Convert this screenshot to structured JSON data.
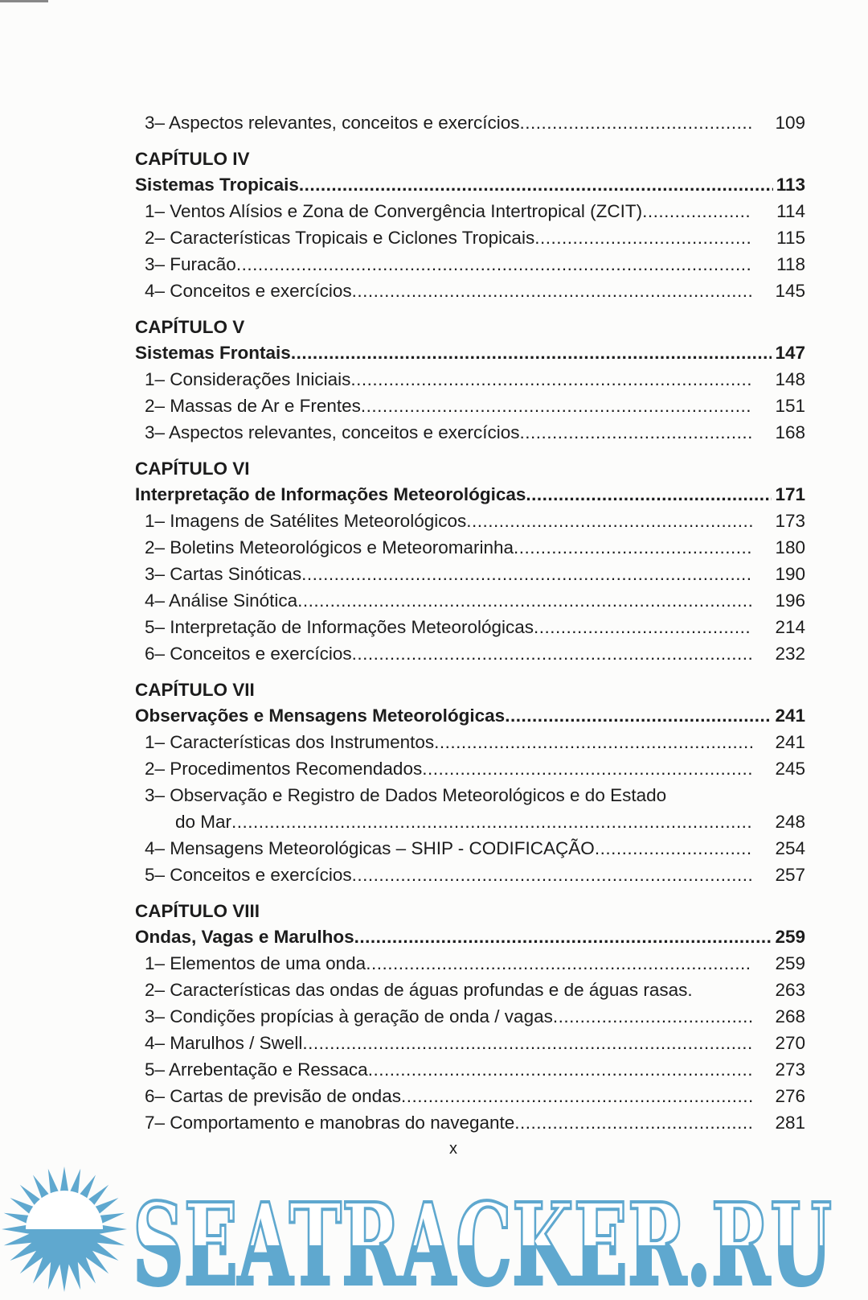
{
  "toc": [
    {
      "type": "item",
      "text": "3– Aspectos relevantes, conceitos e exercícios",
      "page": "109"
    },
    {
      "type": "chapter",
      "text": "CAPÍTULO IV"
    },
    {
      "type": "head",
      "text": "Sistemas Tropicais",
      "page": "113"
    },
    {
      "type": "item",
      "text": "1– Ventos Alísios e Zona de Convergência Intertropical (ZCIT)",
      "page": "114"
    },
    {
      "type": "item",
      "text": "2– Características Tropicais e Ciclones Tropicais",
      "page": "115"
    },
    {
      "type": "item",
      "text": "3– Furacão",
      "page": "118"
    },
    {
      "type": "item",
      "text": "4– Conceitos e exercícios",
      "page": "145"
    },
    {
      "type": "chapter",
      "text": "CAPÍTULO V"
    },
    {
      "type": "head",
      "text": "Sistemas Frontais",
      "page": "147"
    },
    {
      "type": "item",
      "text": "1– Considerações Iniciais",
      "page": "148"
    },
    {
      "type": "item",
      "text": "2– Massas de Ar e Frentes",
      "page": "151"
    },
    {
      "type": "item",
      "text": "3– Aspectos relevantes, conceitos e exercícios",
      "page": "168"
    },
    {
      "type": "chapter",
      "text": "CAPÍTULO VI"
    },
    {
      "type": "head",
      "text": "Interpretação de Informações Meteorológicas ",
      "page": "171"
    },
    {
      "type": "item",
      "text": "1– Imagens de Satélites Meteorológicos",
      "page": "173"
    },
    {
      "type": "item",
      "text": "2– Boletins Meteorológicos e Meteoromarinha ",
      "page": "180"
    },
    {
      "type": "item",
      "text": "3– Cartas Sinóticas ",
      "page": "190"
    },
    {
      "type": "item",
      "text": "4– Análise Sinótica ",
      "page": "196"
    },
    {
      "type": "item",
      "text": "5– Interpretação de Informações Meteorológicas",
      "page": "214"
    },
    {
      "type": "item",
      "text": "6– Conceitos e exercícios ",
      "page": "232"
    },
    {
      "type": "chapter",
      "text": "CAPÍTULO VII"
    },
    {
      "type": "head",
      "text": "Observações e Mensagens Meteorológicas",
      "page": "241"
    },
    {
      "type": "item",
      "text": "1– Características dos Instrumentos",
      "page": "241"
    },
    {
      "type": "item",
      "text": "2– Procedimentos Recomendados",
      "page": "245"
    },
    {
      "type": "item-nolead",
      "text": "3– Observação e Registro de Dados Meteorológicos e do Estado",
      "page": ""
    },
    {
      "type": "cont",
      "text": "do Mar",
      "page": "248"
    },
    {
      "type": "item",
      "text": "4– Mensagens Meteorológicas – SHIP  - CODIFICAÇÃO",
      "page": "254"
    },
    {
      "type": "item",
      "text": "5– Conceitos e exercícios",
      "page": "257"
    },
    {
      "type": "chapter",
      "text": "CAPÍTULO VIII"
    },
    {
      "type": "head",
      "text": "Ondas, Vagas e Marulhos",
      "page": "259"
    },
    {
      "type": "item",
      "text": "1– Elementos de uma onda",
      "page": "259"
    },
    {
      "type": "item-nolead",
      "text": "2– Características das ondas de águas profundas e de águas rasas.",
      "page": "263"
    },
    {
      "type": "item",
      "text": "3– Condições propícias à geração de onda / vagas",
      "page": "268"
    },
    {
      "type": "item",
      "text": "4– Marulhos / Swell",
      "page": "270"
    },
    {
      "type": "item",
      "text": "5– Arrebentação e Ressaca",
      "page": "273"
    },
    {
      "type": "item",
      "text": "6– Cartas de previsão de ondas",
      "page": "276"
    },
    {
      "type": "item",
      "text": "7– Comportamento e manobras do navegante",
      "page": "281"
    }
  ],
  "page_number": "x",
  "watermark": {
    "text": "SEATRACKER.RU",
    "icon": "sun-icon",
    "color": "#5fa8cf"
  }
}
